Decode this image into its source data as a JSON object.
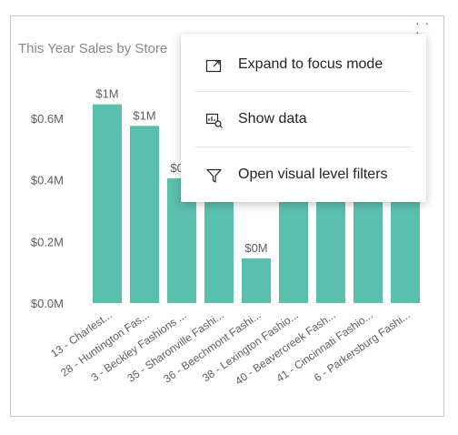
{
  "visual": {
    "title": "This Year Sales by Store",
    "more_options_label": "· · ·"
  },
  "menu": {
    "items": [
      {
        "label": "Expand to focus mode",
        "icon": "expand-icon"
      },
      {
        "label": "Show data",
        "icon": "show-data-icon"
      },
      {
        "label": "Open visual level filters",
        "icon": "filter-icon"
      }
    ]
  },
  "colors": {
    "bar": "#5bbfad",
    "axis_text": "#605e5c",
    "title": "#8a8886"
  },
  "chart_data": {
    "type": "bar",
    "title": "This Year Sales by Store",
    "categories": [
      "13 - Charlest...",
      "28 - Huntington Fas...",
      "3 - Beckley Fashions ...",
      "35 - Sharonville Fashi...",
      "36 - Beechmont Fashi...",
      "38 - Lexington Fashio...",
      "40 - Beavercreek Fash...",
      "41 - Cincinnati Fashio...",
      "6 - Parkersburg Fashi..."
    ],
    "values": [
      0.645,
      0.575,
      0.405,
      0.4,
      0.145,
      0.4,
      0.4,
      0.4,
      0.4
    ],
    "data_labels": [
      "$1M",
      "$1M",
      "$0M",
      "",
      "$0M",
      "",
      "",
      "",
      ""
    ],
    "yticks": [
      "$0.0M",
      "$0.2M",
      "$0.4M",
      "$0.6M"
    ],
    "ytick_values": [
      0,
      0.2,
      0.4,
      0.6
    ],
    "ylim": [
      0,
      0.7
    ],
    "grid": false
  }
}
